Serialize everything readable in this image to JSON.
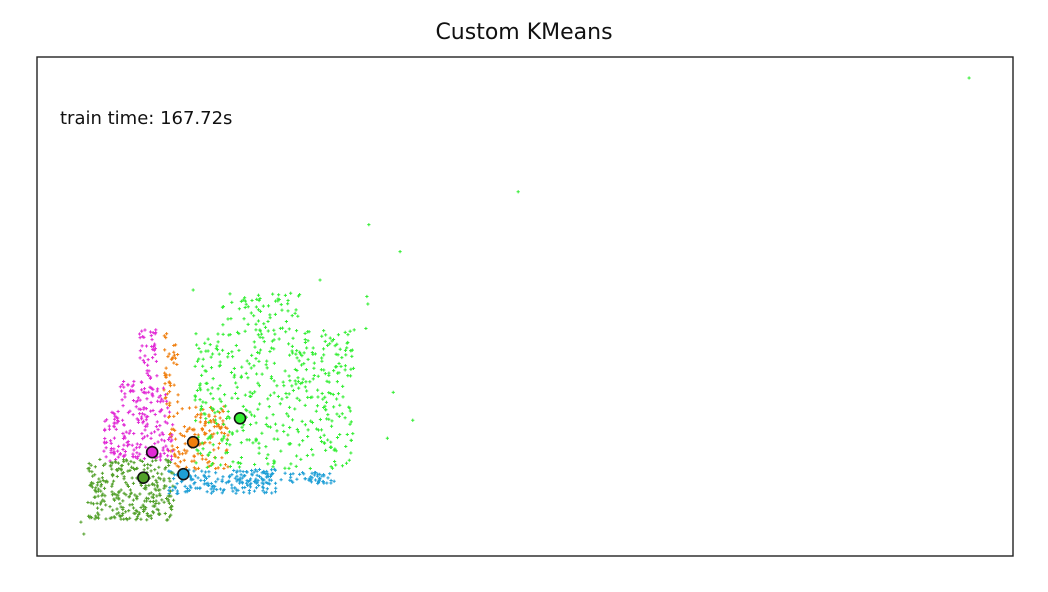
{
  "chart_data": {
    "type": "scatter",
    "title": "Custom KMeans",
    "annotation": "train time: 167.72s",
    "xlabel": "",
    "ylabel": "",
    "xlim": [
      0,
      100
    ],
    "ylim": [
      0,
      100
    ],
    "ticks_visible": false,
    "grid": false,
    "marker": "+",
    "centroid_marker": "circle with black edge",
    "seed": 7,
    "clusters": [
      {
        "color": "#1f9fd6",
        "centroid": [
          15.0,
          16.4
        ],
        "count": 240,
        "regions": [
          [
            13.5,
            12.5,
            24.5,
            17.4
          ],
          [
            22.0,
            14.5,
            30.5,
            16.8
          ]
        ]
      },
      {
        "color": "#f07f0e",
        "centroid": [
          16.0,
          22.8
        ],
        "count": 180,
        "regions": [
          [
            13.4,
            17.4,
            19.6,
            30.0
          ],
          [
            13.0,
            30.0,
            14.5,
            45.0
          ]
        ]
      },
      {
        "color": "#33ee33",
        "centroid": [
          20.8,
          27.6
        ],
        "count": 520,
        "regions": [
          [
            16.2,
            17.5,
            32.5,
            45.5
          ],
          [
            19.0,
            45.0,
            27.0,
            53.0
          ]
        ],
        "outliers": [
          [
            95.5,
            95.8
          ],
          [
            49.3,
            73.0
          ],
          [
            34.0,
            66.4
          ],
          [
            37.2,
            61.0
          ],
          [
            29.0,
            55.3
          ],
          [
            16.0,
            53.3
          ],
          [
            33.8,
            52.0
          ],
          [
            33.9,
            50.5
          ],
          [
            33.7,
            45.6
          ],
          [
            36.5,
            32.8
          ],
          [
            38.5,
            27.2
          ],
          [
            35.9,
            23.6
          ],
          [
            32.0,
            19.2
          ]
        ]
      },
      {
        "color": "#e12bd5",
        "centroid": [
          11.8,
          20.8
        ],
        "count": 260,
        "regions": [
          [
            6.8,
            19.0,
            14.0,
            30.0
          ],
          [
            8.5,
            30.0,
            13.3,
            35.0
          ],
          [
            10.5,
            35.0,
            12.3,
            45.4
          ]
        ]
      },
      {
        "color": "#52a02a",
        "centroid": [
          10.9,
          15.7
        ],
        "count": 300,
        "regions": [
          [
            5.2,
            7.2,
            14.0,
            19.4
          ]
        ],
        "outliers": [
          [
            4.5,
            6.8
          ],
          [
            4.8,
            4.4
          ]
        ]
      }
    ]
  }
}
